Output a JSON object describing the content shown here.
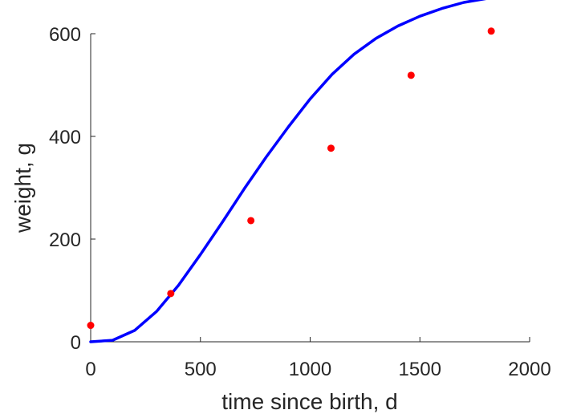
{
  "chart_data": {
    "type": "scatter",
    "title": "",
    "xlabel": "time since birth, d",
    "ylabel": "weight, g",
    "xlim": [
      0,
      2000
    ],
    "ylim": [
      0,
      600
    ],
    "xticks": [
      0,
      500,
      1000,
      1500,
      2000
    ],
    "yticks": [
      0,
      200,
      400,
      600
    ],
    "grid": false,
    "legend": "none",
    "series": [
      {
        "kind": "points",
        "color": "#ff0000",
        "x": [
          0,
          365,
          730,
          1095,
          1460,
          1825
        ],
        "y": [
          32,
          94,
          236,
          377,
          519,
          605
        ]
      },
      {
        "kind": "line",
        "color": "#0000ff",
        "x": [
          0,
          100,
          200,
          300,
          400,
          500,
          600,
          700,
          800,
          900,
          1000,
          1100,
          1200,
          1300,
          1400,
          1500,
          1600,
          1700,
          1825
        ],
        "y": [
          0,
          3,
          22,
          59,
          110,
          170,
          233,
          298,
          360,
          418,
          473,
          521,
          560,
          591,
          615,
          634,
          649,
          661,
          670
        ]
      }
    ]
  }
}
